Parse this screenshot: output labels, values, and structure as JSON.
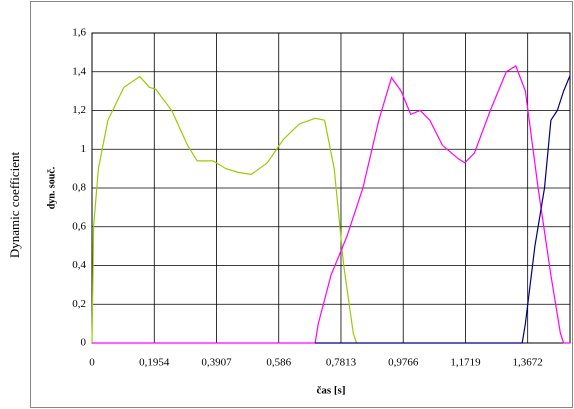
{
  "chart_data": {
    "type": "line",
    "outer_label": "Dynamic coefficient",
    "y_label": "dyn. souč.",
    "x_label": "čas [s]",
    "xlim": [
      0,
      1.5
    ],
    "ylim": [
      0,
      1.6
    ],
    "xticks": [
      0,
      {
        "value": 0.1954,
        "label": "0,1954"
      },
      {
        "value": 0.3907,
        "label": "0,3907"
      },
      {
        "value": 0.586,
        "label": "0,586"
      },
      {
        "value": 0.7813,
        "label": "0,7813"
      },
      {
        "value": 0.9766,
        "label": "0,9766"
      },
      {
        "value": 1.1719,
        "label": "1,1719"
      },
      {
        "value": 1.3672,
        "label": "1,3672"
      }
    ],
    "yticks": [
      0,
      {
        "value": 0.2,
        "label": "0,2"
      },
      {
        "value": 0.4,
        "label": "0,4"
      },
      {
        "value": 0.6,
        "label": "0,6"
      },
      {
        "value": 0.8,
        "label": "0,8"
      },
      1,
      {
        "value": 1.2,
        "label": "1,2"
      },
      {
        "value": 1.4,
        "label": "1,4"
      },
      {
        "value": 1.6,
        "label": "1,6"
      }
    ],
    "grid": true,
    "series": [
      {
        "color": "#99cc00",
        "x": [
          0,
          0.005,
          0.02,
          0.05,
          0.1,
          0.15,
          0.18,
          0.2,
          0.25,
          0.3,
          0.33,
          0.38,
          0.42,
          0.46,
          0.5,
          0.55,
          0.6,
          0.65,
          0.7,
          0.73,
          0.76,
          0.79,
          0.82,
          0.83
        ],
        "values": [
          0,
          0.6,
          0.9,
          1.15,
          1.32,
          1.375,
          1.32,
          1.31,
          1.2,
          1.02,
          0.94,
          0.94,
          0.9,
          0.88,
          0.87,
          0.93,
          1.05,
          1.13,
          1.16,
          1.15,
          0.9,
          0.4,
          0.05,
          0
        ]
      },
      {
        "color": "#ff00ff",
        "x": [
          0,
          0.7,
          0.71,
          0.75,
          0.8,
          0.85,
          0.9,
          0.94,
          0.97,
          1.0,
          1.03,
          1.06,
          1.1,
          1.15,
          1.17,
          1.2,
          1.25,
          1.3,
          1.33,
          1.36,
          1.4,
          1.44,
          1.47,
          1.48,
          1.5
        ],
        "values": [
          0,
          0,
          0.1,
          0.35,
          0.55,
          0.8,
          1.15,
          1.37,
          1.3,
          1.18,
          1.2,
          1.15,
          1.02,
          0.95,
          0.93,
          0.98,
          1.2,
          1.4,
          1.43,
          1.3,
          0.8,
          0.35,
          0.05,
          0,
          0
        ]
      },
      {
        "color": "#000080",
        "x": [
          0.7,
          1.35,
          1.36,
          1.39,
          1.42,
          1.44,
          1.46,
          1.48,
          1.5
        ],
        "values": [
          0,
          0,
          0.1,
          0.5,
          0.8,
          1.15,
          1.2,
          1.3,
          1.38
        ]
      }
    ]
  }
}
